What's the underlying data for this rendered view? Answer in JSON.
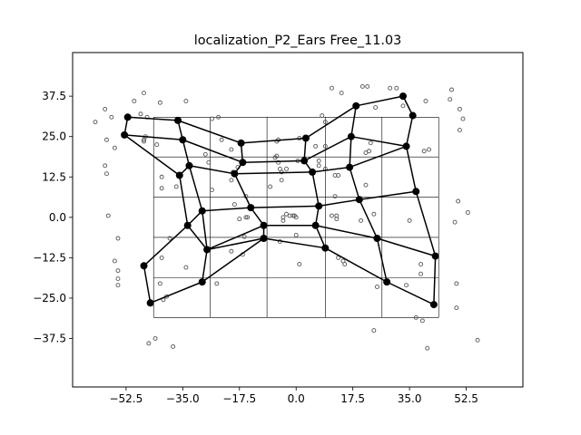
{
  "chart_data": {
    "type": "scatter",
    "title": "localization_P2_Ears Free_11.03",
    "xlabel": "",
    "ylabel": "",
    "xlim": [
      -69,
      70
    ],
    "ylim": [
      -52.5,
      51
    ],
    "xticks": [
      -52.5,
      -35.0,
      -17.5,
      0.0,
      17.5,
      35.0,
      52.5
    ],
    "yticks": [
      -37.5,
      -25.0,
      -12.5,
      0.0,
      12.5,
      25.0,
      37.5
    ],
    "xtick_labels": [
      "−52.5",
      "−35.0",
      "−17.5",
      "0.0",
      "17.5",
      "35.0",
      "52.5"
    ],
    "ytick_labels": [
      "−37.5",
      "−25.0",
      "−12.5",
      "0.0",
      "12.5",
      "25.0",
      "37.5"
    ],
    "grid": false,
    "reference_grid": {
      "x": [
        -44,
        -26.5,
        -9,
        9,
        26.5,
        44
      ],
      "y": [
        -31,
        -18.7,
        -6.2,
        6.2,
        18.7,
        31
      ],
      "color": "#000000"
    },
    "scatter_points": [
      [
        -59,
        33.5
      ],
      [
        -59,
        16
      ],
      [
        -58.5,
        13.5
      ],
      [
        -58.5,
        24
      ],
      [
        -57,
        31
      ],
      [
        -56,
        21.5
      ],
      [
        -62,
        29.5
      ],
      [
        -58,
        0.5
      ],
      [
        -56,
        -13.5
      ],
      [
        -55,
        -6.5
      ],
      [
        -55,
        -16.5
      ],
      [
        -55,
        -19
      ],
      [
        -55,
        -21
      ],
      [
        -50,
        36
      ],
      [
        -48,
        32
      ],
      [
        -47,
        38.5
      ],
      [
        -46,
        31
      ],
      [
        -47,
        24
      ],
      [
        -42,
        35.5
      ],
      [
        -43,
        22.5
      ],
      [
        -46.5,
        25
      ],
      [
        -47,
        23.5
      ],
      [
        -41.5,
        12.5
      ],
      [
        -41.5,
        9
      ],
      [
        -39,
        -6.5
      ],
      [
        -37,
        9.5
      ],
      [
        -41.5,
        -12.5
      ],
      [
        -42,
        -20.5
      ],
      [
        -41,
        -25.5
      ],
      [
        -40,
        -24.5
      ],
      [
        -34,
        -15.5
      ],
      [
        -34,
        36
      ],
      [
        -28,
        19.5
      ],
      [
        -27,
        17
      ],
      [
        -26,
        30.5
      ],
      [
        -24,
        31
      ],
      [
        -26,
        8.5
      ],
      [
        -24.5,
        -20.5
      ],
      [
        -23,
        24
      ],
      [
        -20,
        21
      ],
      [
        -19.5,
        14
      ],
      [
        -20,
        11.5
      ],
      [
        -19,
        4
      ],
      [
        -17.5,
        -0.5
      ],
      [
        -15.5,
        0
      ],
      [
        -16,
        -6
      ],
      [
        -16.5,
        -11.5
      ],
      [
        -20,
        -10.5
      ],
      [
        -18,
        15.5
      ],
      [
        -15.5,
        6.5
      ],
      [
        -15,
        0
      ],
      [
        -8,
        9.5
      ],
      [
        -6.5,
        18.5
      ],
      [
        -6,
        19
      ],
      [
        -5.5,
        17
      ],
      [
        -5,
        15
      ],
      [
        -4.5,
        11.5
      ],
      [
        -6,
        23.5
      ],
      [
        -5.5,
        24
      ],
      [
        -4,
        0
      ],
      [
        -5,
        -7.5
      ],
      [
        -4,
        -1
      ],
      [
        -3,
        1
      ],
      [
        -2,
        0.5
      ],
      [
        -1,
        0.5
      ],
      [
        0,
        0
      ],
      [
        -0.5,
        0.5
      ],
      [
        0,
        -5.5
      ],
      [
        1,
        -14.5
      ],
      [
        1,
        24.5
      ],
      [
        0.5,
        17.5
      ],
      [
        -3,
        15
      ],
      [
        -4.5,
        14
      ],
      [
        6,
        22
      ],
      [
        7,
        17.5
      ],
      [
        7,
        16
      ],
      [
        9,
        22
      ],
      [
        9,
        15
      ],
      [
        8,
        31.5
      ],
      [
        9,
        29.5
      ],
      [
        11,
        40
      ],
      [
        14,
        38.5
      ],
      [
        12,
        13
      ],
      [
        12,
        6.5
      ],
      [
        13,
        13
      ],
      [
        11,
        0.5
      ],
      [
        12.5,
        -0.5
      ],
      [
        12.5,
        0.5
      ],
      [
        13,
        -12.5
      ],
      [
        15,
        -14.5
      ],
      [
        14.5,
        -13.5
      ],
      [
        20,
        -1
      ],
      [
        21.5,
        20
      ],
      [
        21.5,
        10
      ],
      [
        23,
        23
      ],
      [
        22.5,
        20.5
      ],
      [
        24.5,
        34
      ],
      [
        20.5,
        40.5
      ],
      [
        22,
        40.5
      ],
      [
        24,
        1
      ],
      [
        25,
        -21.5
      ],
      [
        24,
        -35
      ],
      [
        29,
        40
      ],
      [
        31,
        40
      ],
      [
        33,
        34.5
      ],
      [
        34,
        -21
      ],
      [
        35,
        -1
      ],
      [
        37,
        -31
      ],
      [
        39,
        -32
      ],
      [
        39.5,
        20.5
      ],
      [
        41,
        21
      ],
      [
        40,
        36
      ],
      [
        38.5,
        -14.5
      ],
      [
        38.5,
        -17.5
      ],
      [
        40.5,
        -40.5
      ],
      [
        48,
        39.5
      ],
      [
        47.5,
        36.5
      ],
      [
        50.5,
        33.5
      ],
      [
        51.5,
        30.5
      ],
      [
        50.5,
        27
      ],
      [
        49,
        -1.5
      ],
      [
        50,
        5
      ],
      [
        53,
        1.5
      ],
      [
        49.5,
        -20.5
      ],
      [
        49.5,
        -28
      ],
      [
        56,
        -38
      ],
      [
        -38,
        -40
      ],
      [
        -43.5,
        -37.5
      ],
      [
        -45.5,
        -39
      ]
    ],
    "edges": [
      [
        [
          -52,
          31
        ],
        [
          -36.5,
          30
        ]
      ],
      [
        [
          -36.5,
          30
        ],
        [
          -17,
          23
        ]
      ],
      [
        [
          -17,
          23
        ],
        [
          3,
          24.5
        ]
      ],
      [
        [
          3,
          24.5
        ],
        [
          18.5,
          34.5
        ]
      ],
      [
        [
          18.5,
          34.5
        ],
        [
          33,
          37.5
        ]
      ],
      [
        [
          33,
          37.5
        ],
        [
          36,
          31.5
        ]
      ],
      [
        [
          -53,
          25.5
        ],
        [
          -52,
          31
        ]
      ],
      [
        [
          -53,
          25.5
        ],
        [
          -35,
          24
        ]
      ],
      [
        [
          -35,
          24
        ],
        [
          -16.5,
          17
        ]
      ],
      [
        [
          -16.5,
          17
        ],
        [
          2.5,
          17.5
        ]
      ],
      [
        [
          2.5,
          17.5
        ],
        [
          17,
          25
        ]
      ],
      [
        [
          17,
          25
        ],
        [
          34,
          22
        ]
      ],
      [
        [
          34,
          22
        ],
        [
          36,
          31.5
        ]
      ],
      [
        [
          -36.5,
          30
        ],
        [
          -35,
          24
        ]
      ],
      [
        [
          -17,
          23
        ],
        [
          -16.5,
          17
        ]
      ],
      [
        [
          3,
          24.5
        ],
        [
          2.5,
          17.5
        ]
      ],
      [
        [
          18.5,
          34.5
        ],
        [
          17,
          25
        ]
      ],
      [
        [
          -35,
          24
        ],
        [
          -33,
          16
        ]
      ],
      [
        [
          -33,
          16
        ],
        [
          -36,
          13
        ]
      ],
      [
        [
          -36,
          13
        ],
        [
          -53,
          25.5
        ]
      ],
      [
        [
          -33,
          16
        ],
        [
          -19,
          13.5
        ]
      ],
      [
        [
          -19,
          13.5
        ],
        [
          -16.5,
          17
        ]
      ],
      [
        [
          -19,
          13.5
        ],
        [
          5,
          14
        ]
      ],
      [
        [
          5,
          14
        ],
        [
          2.5,
          17.5
        ]
      ],
      [
        [
          5,
          14
        ],
        [
          16.5,
          15.5
        ]
      ],
      [
        [
          16.5,
          15.5
        ],
        [
          17,
          25
        ]
      ],
      [
        [
          16.5,
          15.5
        ],
        [
          34,
          22
        ]
      ],
      [
        [
          -36,
          13
        ],
        [
          -33.5,
          -2.5
        ]
      ],
      [
        [
          -33.5,
          -2.5
        ],
        [
          -29,
          2
        ]
      ],
      [
        [
          -29,
          2
        ],
        [
          -33,
          16
        ]
      ],
      [
        [
          -29,
          2
        ],
        [
          -14,
          3
        ]
      ],
      [
        [
          -14,
          3
        ],
        [
          -19,
          13.5
        ]
      ],
      [
        [
          -14,
          3
        ],
        [
          7,
          3.5
        ]
      ],
      [
        [
          7,
          3.5
        ],
        [
          5,
          14
        ]
      ],
      [
        [
          7,
          3.5
        ],
        [
          19.5,
          5.5
        ]
      ],
      [
        [
          19.5,
          5.5
        ],
        [
          16.5,
          15.5
        ]
      ],
      [
        [
          19.5,
          5.5
        ],
        [
          37,
          8
        ]
      ],
      [
        [
          37,
          8
        ],
        [
          34,
          22
        ]
      ],
      [
        [
          -29,
          2
        ],
        [
          -27.5,
          -10
        ]
      ],
      [
        [
          -27.5,
          -10
        ],
        [
          -33.5,
          -2.5
        ]
      ],
      [
        [
          -27.5,
          -10
        ],
        [
          -10,
          -2.5
        ]
      ],
      [
        [
          -10,
          -2.5
        ],
        [
          -14,
          3
        ]
      ],
      [
        [
          -10,
          -2.5
        ],
        [
          6,
          -2.5
        ]
      ],
      [
        [
          6,
          -2.5
        ],
        [
          7,
          3.5
        ]
      ],
      [
        [
          6,
          -2.5
        ],
        [
          25,
          -6.5
        ]
      ],
      [
        [
          25,
          -6.5
        ],
        [
          19.5,
          5.5
        ]
      ],
      [
        [
          25,
          -6.5
        ],
        [
          43,
          -12
        ]
      ],
      [
        [
          43,
          -12
        ],
        [
          37,
          8
        ]
      ],
      [
        [
          -27.5,
          -10
        ],
        [
          -10,
          -6.5
        ]
      ],
      [
        [
          -10,
          -6.5
        ],
        [
          -10,
          -2.5
        ]
      ],
      [
        [
          -10,
          -6.5
        ],
        [
          9,
          -9.5
        ]
      ],
      [
        [
          9,
          -9.5
        ],
        [
          6,
          -2.5
        ]
      ],
      [
        [
          9,
          -9.5
        ],
        [
          28,
          -20
        ]
      ],
      [
        [
          28,
          -20
        ],
        [
          25,
          -6.5
        ]
      ],
      [
        [
          28,
          -20
        ],
        [
          42.5,
          -27
        ]
      ],
      [
        [
          42.5,
          -27
        ],
        [
          43,
          -12
        ]
      ],
      [
        [
          -47,
          -15
        ],
        [
          -33.5,
          -2.5
        ]
      ],
      [
        [
          -47,
          -15
        ],
        [
          -45,
          -26.5
        ]
      ],
      [
        [
          -45,
          -26.5
        ],
        [
          -29,
          -20
        ]
      ],
      [
        [
          -29,
          -20
        ],
        [
          -27.5,
          -10
        ]
      ],
      [
        [
          -29,
          -20
        ],
        [
          -10,
          -6.5
        ]
      ]
    ],
    "nodes": [
      [
        -52,
        31
      ],
      [
        -36.5,
        30
      ],
      [
        -17,
        23
      ],
      [
        3,
        24.5
      ],
      [
        18.5,
        34.5
      ],
      [
        33,
        37.5
      ],
      [
        36,
        31.5
      ],
      [
        -53,
        25.5
      ],
      [
        -35,
        24
      ],
      [
        -16.5,
        17
      ],
      [
        2.5,
        17.5
      ],
      [
        17,
        25
      ],
      [
        34,
        22
      ],
      [
        -33,
        16
      ],
      [
        -36,
        13
      ],
      [
        -19,
        13.5
      ],
      [
        5,
        14
      ],
      [
        16.5,
        15.5
      ],
      [
        -29,
        2
      ],
      [
        -33.5,
        -2.5
      ],
      [
        -14,
        3
      ],
      [
        7,
        3.5
      ],
      [
        19.5,
        5.5
      ],
      [
        37,
        8
      ],
      [
        -27.5,
        -10
      ],
      [
        -10,
        -2.5
      ],
      [
        6,
        -2.5
      ],
      [
        25,
        -6.5
      ],
      [
        43,
        -12
      ],
      [
        -10,
        -6.5
      ],
      [
        9,
        -9.5
      ],
      [
        28,
        -20
      ],
      [
        42.5,
        -27
      ],
      [
        -47,
        -15
      ],
      [
        -45,
        -26.5
      ],
      [
        -29,
        -20
      ]
    ],
    "colors": {
      "scatter_edge": "#555555",
      "node_fill": "#000000",
      "edge_line": "#000000",
      "axes_frame": "#000000",
      "background": "#ffffff"
    }
  }
}
